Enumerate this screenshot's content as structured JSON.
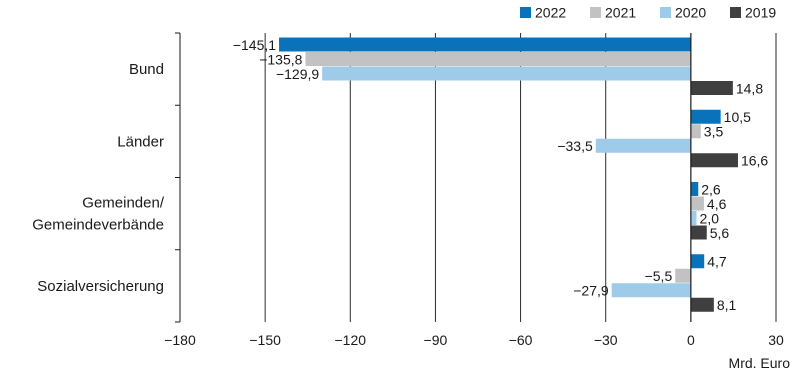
{
  "chart_data": {
    "type": "bar",
    "orientation": "horizontal",
    "categories": [
      [
        "Bund"
      ],
      [
        "Länder"
      ],
      [
        "Gemeinden/",
        "Gemeindeverbände"
      ],
      [
        "Sozialversicherung"
      ]
    ],
    "series": [
      {
        "name": "2022",
        "color": "#0a72b9",
        "values": [
          -145.1,
          10.5,
          2.6,
          4.7
        ],
        "labels": [
          "−145,1",
          "10,5",
          "2,6",
          "4,7"
        ]
      },
      {
        "name": "2021",
        "color": "#c2c2c2",
        "values": [
          -135.8,
          3.5,
          4.6,
          -5.5
        ],
        "labels": [
          "−135,8",
          "3,5",
          "4,6",
          "−5,5"
        ]
      },
      {
        "name": "2020",
        "color": "#9ecbe8",
        "values": [
          -129.9,
          -33.5,
          2.0,
          -27.9
        ],
        "labels": [
          "−129,9",
          "−33,5",
          "2,0",
          "−27,9"
        ]
      },
      {
        "name": "2019",
        "color": "#3f3f3f",
        "values": [
          14.8,
          16.6,
          5.6,
          8.1
        ],
        "labels": [
          "14,8",
          "16,6",
          "5,6",
          "8,1"
        ]
      }
    ],
    "xlim": [
      -180,
      30
    ],
    "xticks": [
      -180,
      -150,
      -120,
      -90,
      -60,
      -30,
      0,
      30
    ],
    "xtick_labels": [
      "−180",
      "−150",
      "−120",
      "−90",
      "−60",
      "−30",
      "0",
      "30"
    ],
    "xlabel": "Mrd. Euro",
    "grid": "vertical",
    "legend_position": "top-right"
  }
}
